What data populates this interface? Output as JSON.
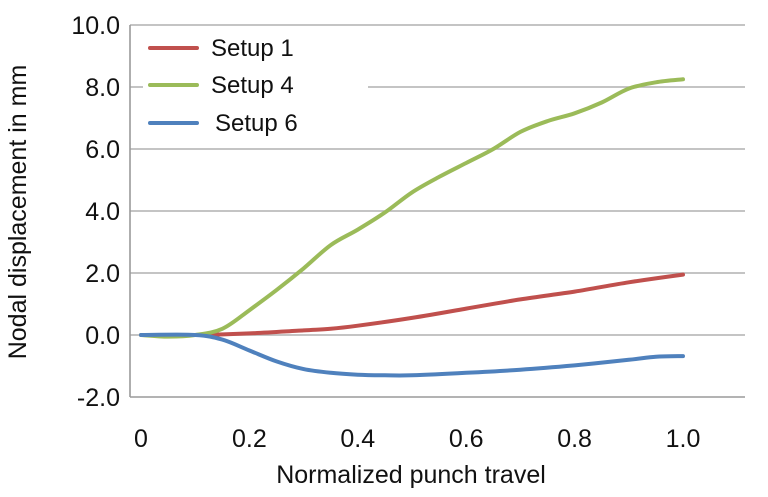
{
  "chart_data": {
    "type": "line",
    "xlabel": "Normalized punch travel",
    "ylabel": "Nodal displacement in mm",
    "xlim": [
      0,
      1.1
    ],
    "ylim": [
      -2.0,
      10.0
    ],
    "x_ticks": [
      0,
      0.2,
      0.4,
      0.6,
      0.8,
      1.0
    ],
    "x_tick_labels": [
      "0",
      "0.2",
      "0.4",
      "0.6",
      "0.8",
      "1.0"
    ],
    "y_ticks": [
      -2,
      0,
      2,
      4,
      6,
      8,
      10
    ],
    "y_tick_labels": [
      "-2.0",
      "0.0",
      "2.0",
      "4.0",
      "6.0",
      "8.0",
      "10.0"
    ],
    "grid": "horizontal",
    "legend_position": "top-left",
    "series": [
      {
        "name": "Setup 1",
        "color": "#c0504d",
        "x": [
          0,
          0.1,
          0.2,
          0.3,
          0.35,
          0.4,
          0.5,
          0.6,
          0.7,
          0.8,
          0.9,
          1.0
        ],
        "y": [
          0,
          0,
          0.05,
          0.15,
          0.2,
          0.3,
          0.55,
          0.85,
          1.15,
          1.4,
          1.7,
          1.95
        ]
      },
      {
        "name": "Setup 4",
        "color": "#9bbb59",
        "x": [
          0,
          0.05,
          0.1,
          0.15,
          0.2,
          0.25,
          0.3,
          0.35,
          0.4,
          0.45,
          0.5,
          0.55,
          0.6,
          0.65,
          0.7,
          0.75,
          0.8,
          0.85,
          0.9,
          0.95,
          1.0
        ],
        "y": [
          0,
          -0.05,
          0,
          0.2,
          0.8,
          1.45,
          2.15,
          2.9,
          3.4,
          3.95,
          4.6,
          5.1,
          5.55,
          6.0,
          6.55,
          6.9,
          7.15,
          7.5,
          7.95,
          8.15,
          8.25
        ]
      },
      {
        "name": "Setup 6",
        "color": "#4f81bd",
        "x": [
          0,
          0.1,
          0.15,
          0.2,
          0.25,
          0.3,
          0.35,
          0.4,
          0.45,
          0.5,
          0.6,
          0.7,
          0.8,
          0.9,
          0.95,
          1.0
        ],
        "y": [
          0,
          0,
          -0.15,
          -0.5,
          -0.85,
          -1.1,
          -1.22,
          -1.28,
          -1.3,
          -1.3,
          -1.22,
          -1.12,
          -0.98,
          -0.8,
          -0.7,
          -0.68
        ]
      }
    ]
  }
}
